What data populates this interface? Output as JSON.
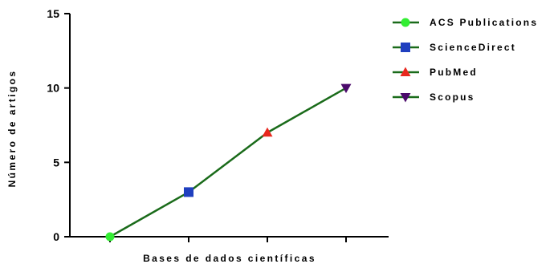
{
  "chart_data": {
    "type": "line",
    "title": "",
    "xlabel": "Bases de dados científicas",
    "ylabel": "Número de artigos",
    "x_tick_labels": [],
    "ylim": [
      0,
      15
    ],
    "yticks": [
      0,
      5,
      10,
      15
    ],
    "grid": false,
    "legend_position": "top-right",
    "line_color": "#1a6b1a",
    "points": [
      {
        "name": "ACS Publications",
        "x": 1,
        "y": 0,
        "marker": "circle",
        "color": "#33ee33"
      },
      {
        "name": "ScienceDirect",
        "x": 2,
        "y": 3,
        "marker": "square",
        "color": "#1f3fbf"
      },
      {
        "name": "PubMed",
        "x": 3,
        "y": 7,
        "marker": "triangle-up",
        "color": "#e8281e"
      },
      {
        "name": "Scopus",
        "x": 4,
        "y": 10,
        "marker": "triangle-down",
        "color": "#4b0a6b"
      }
    ]
  }
}
